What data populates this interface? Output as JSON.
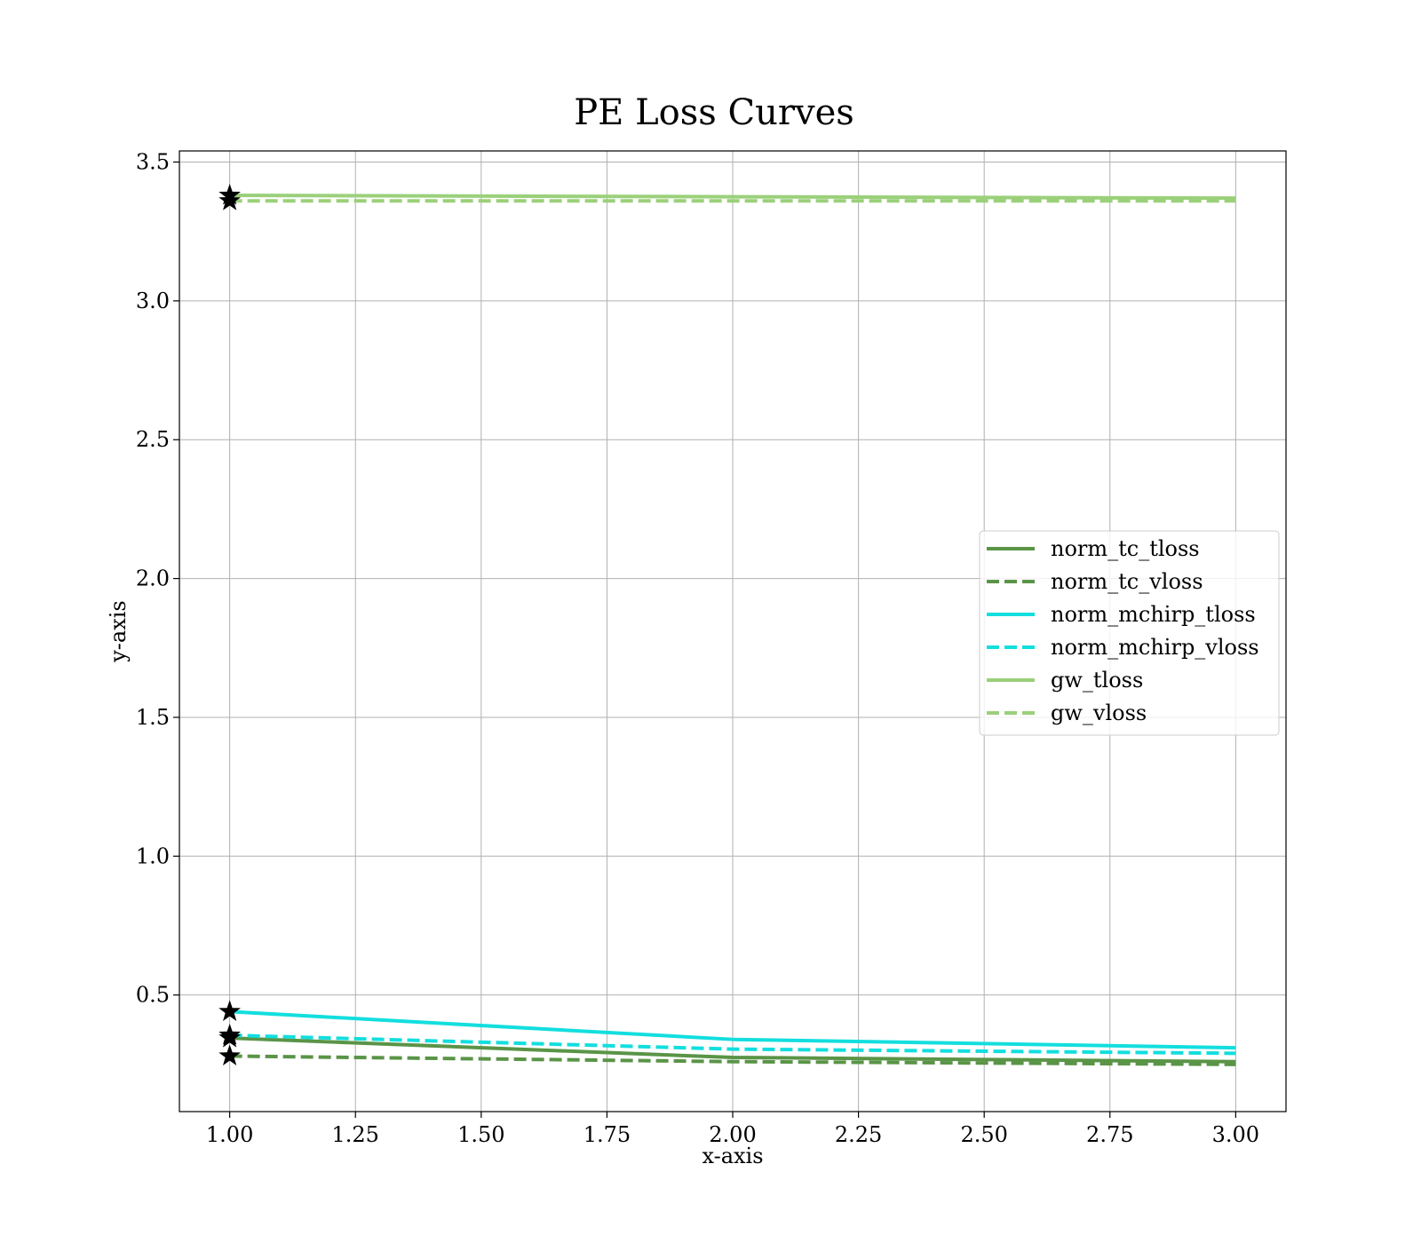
{
  "chart_data": {
    "type": "line",
    "title": "PE Loss Curves",
    "xlabel": "x-axis",
    "ylabel": "y-axis",
    "xlim": [
      0.9,
      3.1
    ],
    "ylim": [
      0.08,
      3.54
    ],
    "xticks": [
      "1.00",
      "1.25",
      "1.50",
      "1.75",
      "2.00",
      "2.25",
      "2.50",
      "2.75",
      "3.00"
    ],
    "yticks": [
      "0.5",
      "1.0",
      "1.5",
      "2.0",
      "2.5",
      "3.0",
      "3.5"
    ],
    "grid": true,
    "legend_position": "center-right",
    "x": [
      1,
      2,
      3
    ],
    "series": [
      {
        "name": "norm_tc_tloss",
        "color": "#5a9447",
        "style": "solid",
        "values": [
          0.345,
          0.275,
          0.26
        ]
      },
      {
        "name": "norm_tc_vloss",
        "color": "#5a9447",
        "style": "dashed",
        "values": [
          0.28,
          0.26,
          0.25
        ]
      },
      {
        "name": "norm_mchirp_tloss",
        "color": "#13dede",
        "style": "solid",
        "values": [
          0.44,
          0.34,
          0.31
        ]
      },
      {
        "name": "norm_mchirp_vloss",
        "color": "#13dede",
        "style": "dashed",
        "values": [
          0.355,
          0.305,
          0.29
        ]
      },
      {
        "name": "gw_tloss",
        "color": "#9bd07a",
        "style": "solid",
        "values": [
          3.38,
          3.375,
          3.37
        ]
      },
      {
        "name": "gw_vloss",
        "color": "#9bd07a",
        "style": "dashed",
        "values": [
          3.36,
          3.36,
          3.36
        ]
      }
    ],
    "markers": {
      "shape": "star",
      "color": "#000000",
      "at": "x=1.00, first value of each series"
    }
  }
}
